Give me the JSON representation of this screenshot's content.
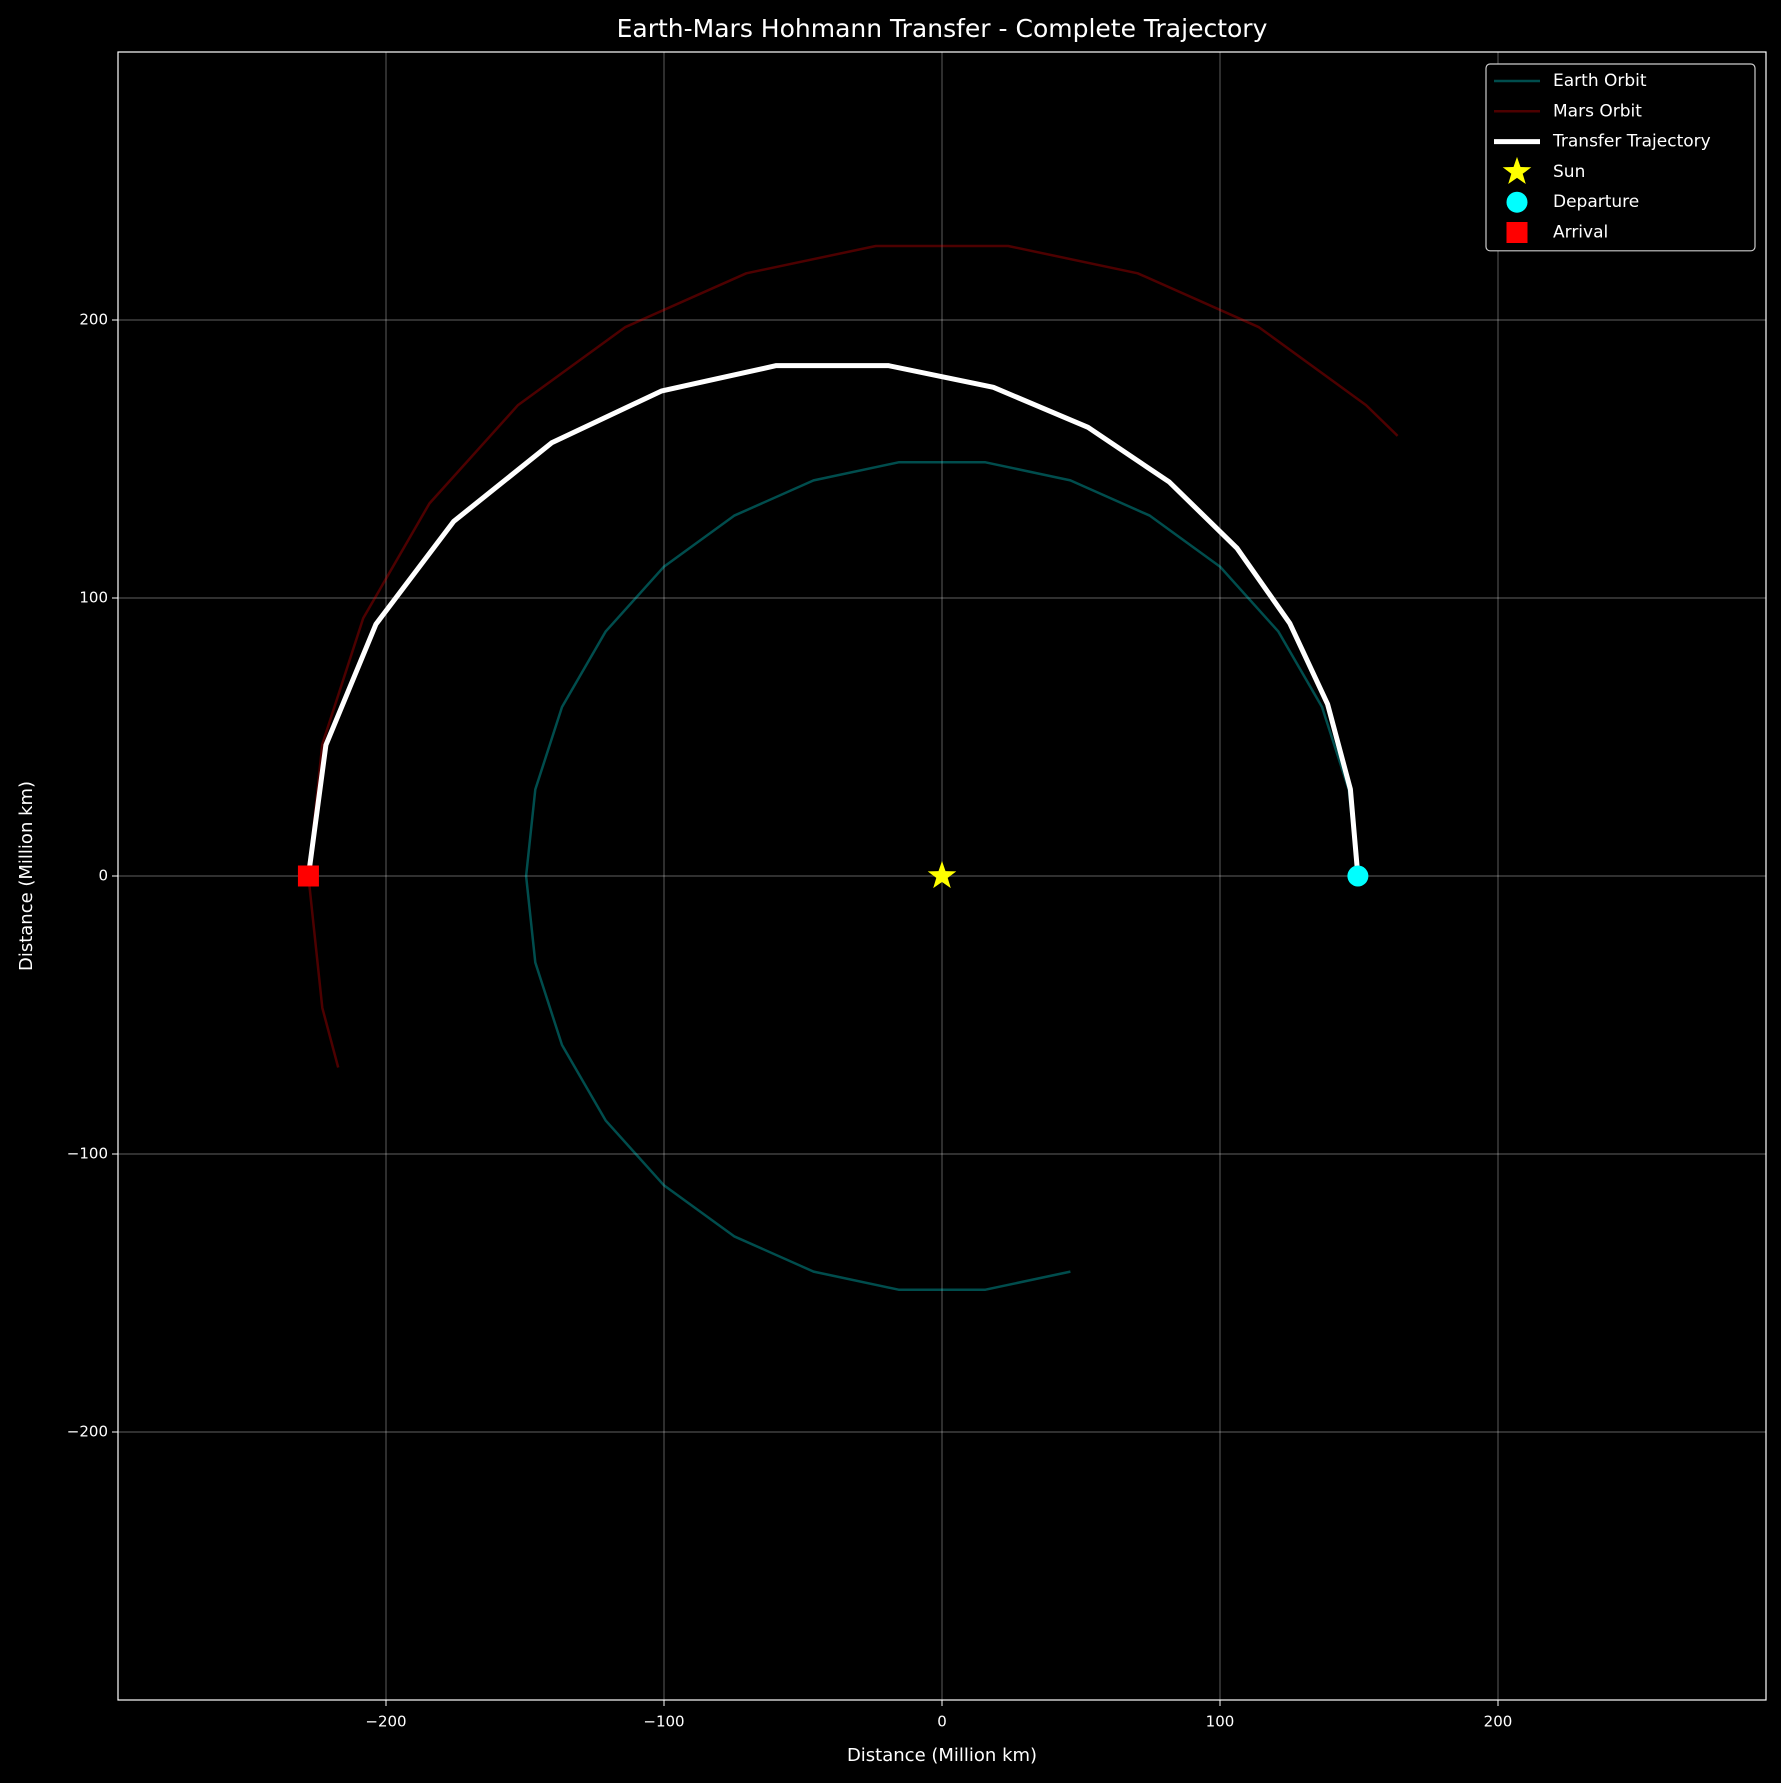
{
  "chart_data": {
    "type": "line",
    "title": "Earth-Mars Hohmann Transfer - Complete Trajectory",
    "xlabel": "Distance (Million km)",
    "ylabel": "Distance (Million km)",
    "xlim": [
      -296.4,
      296.4
    ],
    "ylim": [
      -296.4,
      296.4
    ],
    "xticks": [
      {
        "value": -200,
        "label": "−200"
      },
      {
        "value": -100,
        "label": "−100"
      },
      0,
      100,
      200
    ],
    "yticks": [
      {
        "value": -200,
        "label": "−200"
      },
      {
        "value": -100,
        "label": "−100"
      },
      0,
      100,
      200
    ],
    "grid": true,
    "legend": "upper right",
    "series": [
      {
        "name": "Earth Orbit",
        "color": "rgba(0,255,255,0.3)",
        "style": "thin",
        "x": [
          149.6,
          146.3,
          136.7,
          121.0,
          100.1,
          74.8,
          46.2,
          15.6,
          -15.6,
          -46.2,
          -74.8,
          -100.1,
          -121.0,
          -136.7,
          -146.3,
          -149.6,
          -146.3,
          -136.7,
          -121.0,
          -100.1,
          -74.8,
          -46.2,
          -15.6,
          15.6,
          46.2
        ],
        "y": [
          0,
          31.1,
          60.8,
          87.9,
          111.2,
          129.6,
          142.3,
          148.8,
          148.8,
          142.3,
          129.6,
          111.2,
          87.9,
          60.8,
          31.1,
          0,
          -31.1,
          -60.8,
          -87.9,
          -111.2,
          -129.6,
          -142.3,
          -148.8,
          -148.8,
          -142.3
        ]
      },
      {
        "name": "Mars Orbit",
        "color": "rgba(255,0,0,0.3)",
        "style": "thin",
        "x": [
          163.9,
          152.5,
          114.0,
          70.4,
          23.8,
          -23.8,
          -70.4,
          -114.0,
          -152.5,
          -184.4,
          -208.2,
          -222.9,
          -227.9,
          -222.9,
          -217.2
        ],
        "y": [
          158.3,
          169.4,
          197.4,
          216.8,
          226.6,
          226.6,
          216.8,
          197.4,
          169.4,
          134.0,
          92.7,
          47.4,
          0,
          -47.4,
          -68.9
        ]
      },
      {
        "name": "Transfer Trajectory",
        "color": "#ffffff",
        "style": "thick",
        "x": [
          149.6,
          146.9,
          138.7,
          125.1,
          106.1,
          81.8,
          52.5,
          18.5,
          -19.3,
          -59.6,
          -100.8,
          -140.3,
          -175.6,
          -203.6,
          -221.6,
          -227.9
        ],
        "y": [
          0,
          31.2,
          61.8,
          90.9,
          117.9,
          141.7,
          161.4,
          175.8,
          183.6,
          183.6,
          174.5,
          155.9,
          127.6,
          90.6,
          47.1,
          0
        ]
      },
      {
        "name": "Sun",
        "color": "#ffff00",
        "marker": "star",
        "x": [
          0
        ],
        "y": [
          0
        ]
      },
      {
        "name": "Departure",
        "color": "#00ffff",
        "marker": "circle",
        "x": [
          149.6
        ],
        "y": [
          0
        ]
      },
      {
        "name": "Arrival",
        "color": "#ff0000",
        "marker": "square",
        "x": [
          -227.9
        ],
        "y": [
          0
        ]
      }
    ]
  }
}
